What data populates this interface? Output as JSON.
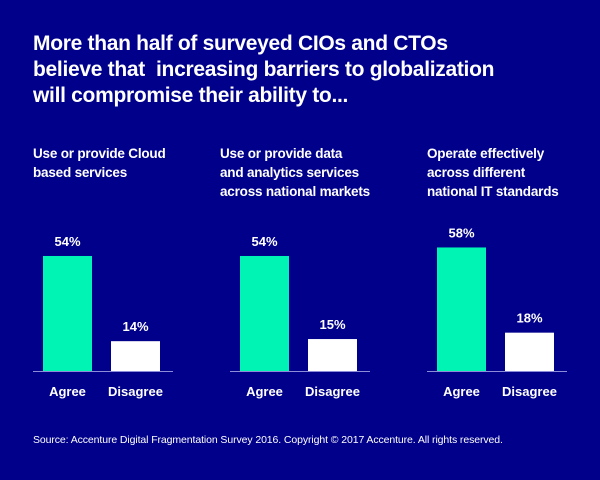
{
  "title_lines": [
    "More than half of surveyed CIOs and CTOs",
    "believe that  increasing barriers to globalization",
    "will compromise their ability to..."
  ],
  "colors": {
    "background": "#00008a",
    "agree": "#00f5b4",
    "disagree": "#ffffff",
    "axis": "#8c8cd8",
    "text": "#ffffff"
  },
  "chart_data": [
    {
      "type": "bar",
      "title_lines": [
        "Use or provide Cloud",
        "based services"
      ],
      "categories": [
        "Agree",
        "Disagree"
      ],
      "values": [
        54,
        14
      ],
      "value_labels": [
        "54%",
        "14%"
      ],
      "unit": "%",
      "ylim": [
        0,
        100
      ],
      "grid": false
    },
    {
      "type": "bar",
      "title_lines": [
        "Use or provide data",
        "and analytics services",
        "across national markets"
      ],
      "categories": [
        "Agree",
        "Disagree"
      ],
      "values": [
        54,
        15
      ],
      "value_labels": [
        "54%",
        "15%"
      ],
      "unit": "%",
      "ylim": [
        0,
        100
      ],
      "grid": false
    },
    {
      "type": "bar",
      "title_lines": [
        "Operate effectively",
        "across different",
        "national IT standards"
      ],
      "categories": [
        "Agree",
        "Disagree"
      ],
      "values": [
        58,
        18
      ],
      "value_labels": [
        "58%",
        "18%"
      ],
      "unit": "%",
      "ylim": [
        0,
        100
      ],
      "grid": false
    }
  ],
  "source": "Source: Accenture Digital Fragmentation Survey 2016. Copyright © 2017 Accenture. All rights reserved."
}
